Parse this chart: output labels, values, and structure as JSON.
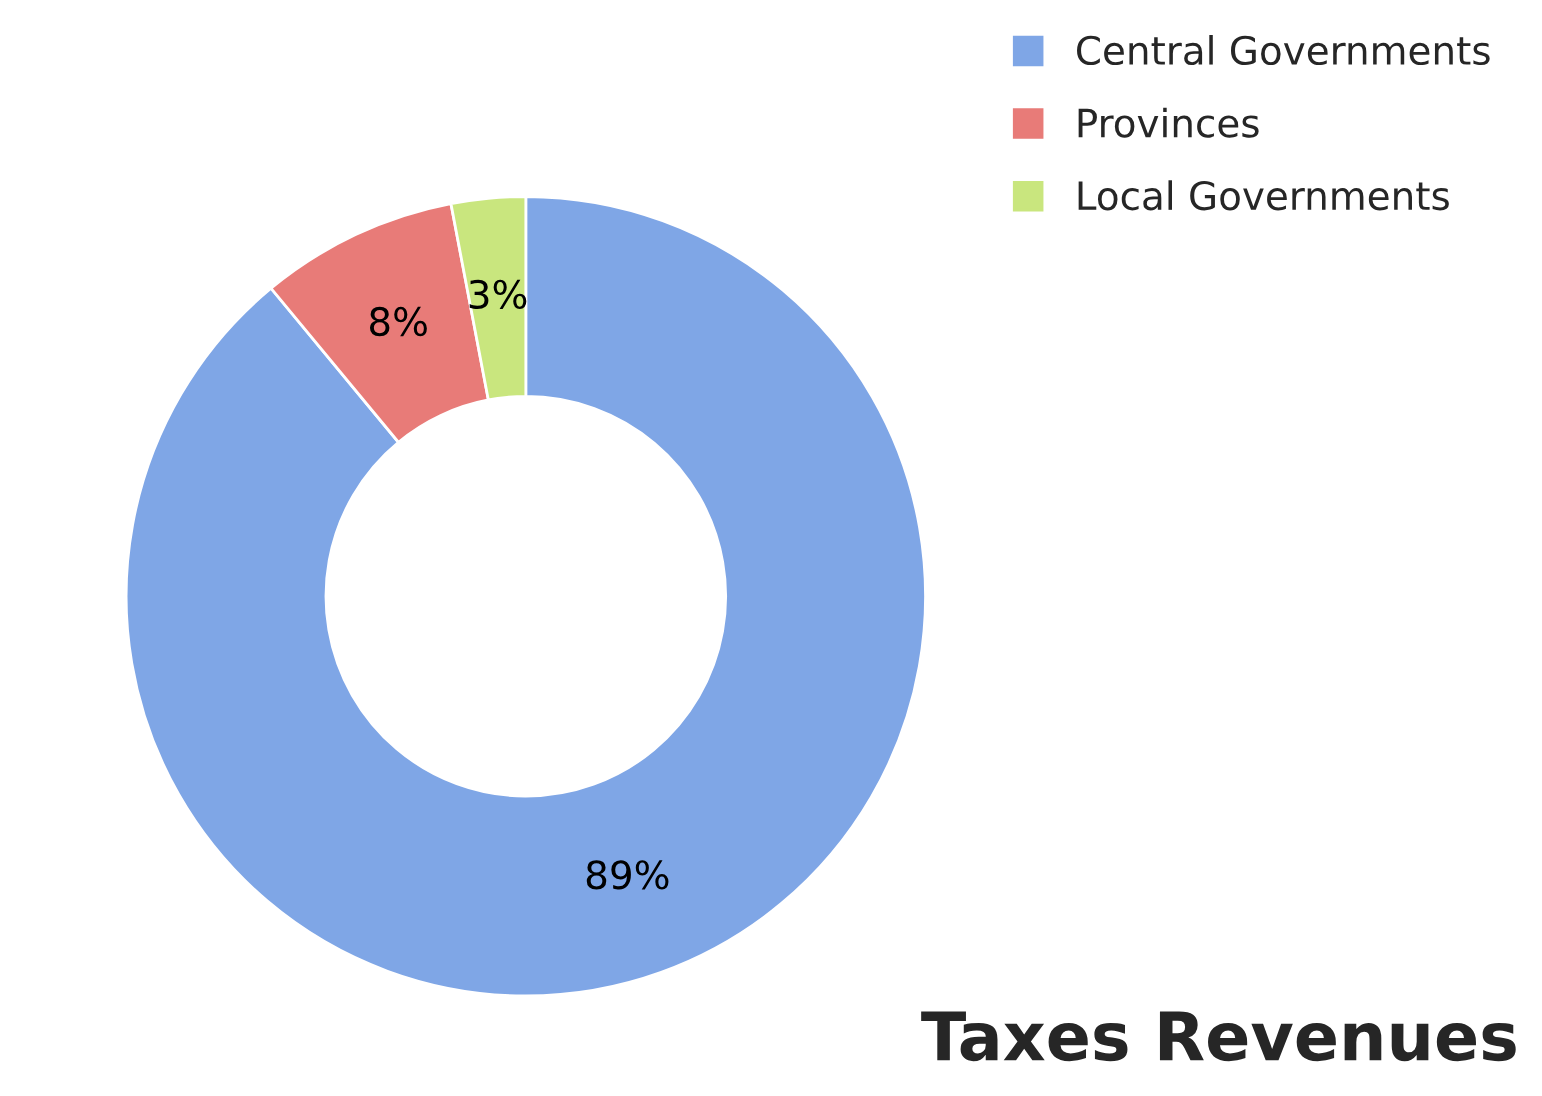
{
  "chart_data": {
    "type": "donut",
    "title": "Taxes Revenues",
    "categories": [
      "Central Governments",
      "Provinces",
      "Local Governments"
    ],
    "values": [
      89,
      8,
      3
    ],
    "colors": [
      "#7fa6e6",
      "#e87b78",
      "#c9e67e"
    ],
    "value_labels": [
      "89%",
      "8%",
      "3%"
    ],
    "legend": "top right"
  }
}
